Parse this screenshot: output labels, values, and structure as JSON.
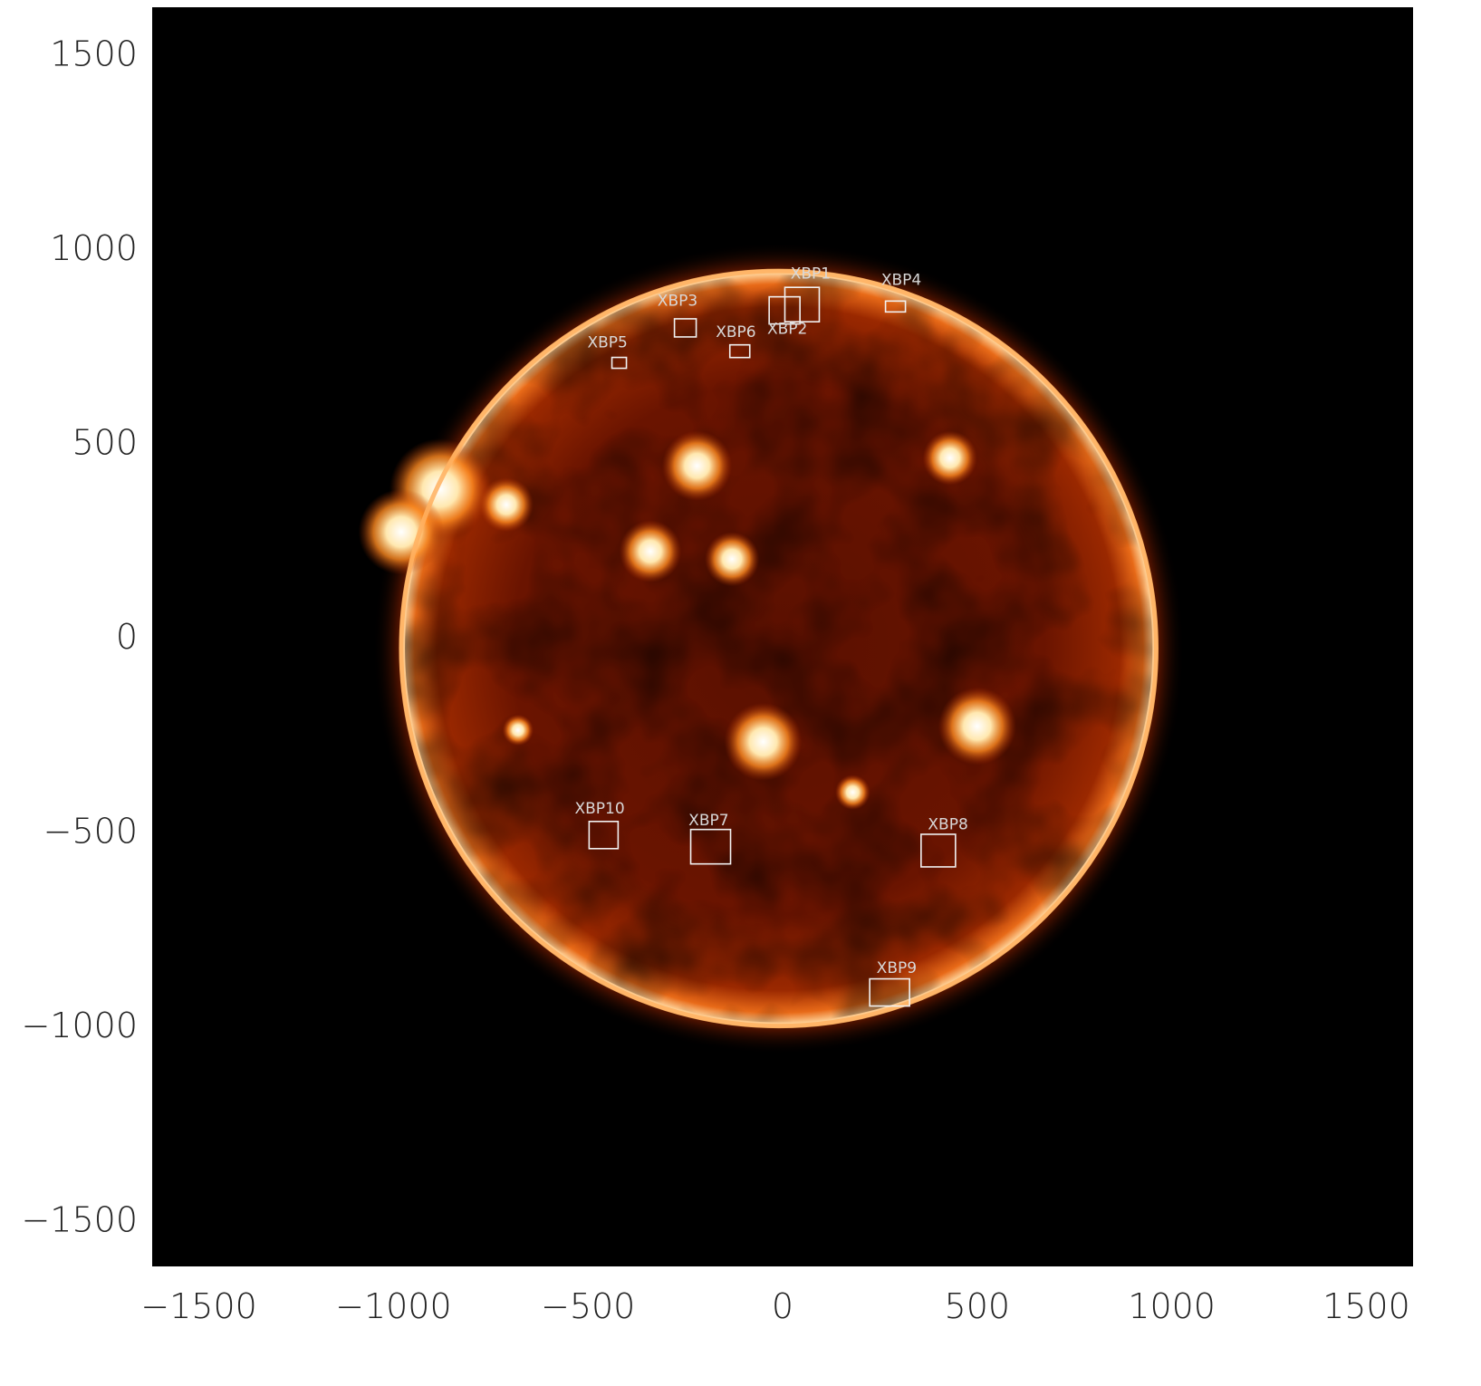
{
  "colors": {
    "background": "#000000",
    "disk_dark": "#3a0800",
    "disk_mid": "#8a1e00",
    "limb": "#ffb060",
    "active_region": "#fff2d0",
    "annotation": "#f2f2f2"
  },
  "axes": {
    "x_range": [
      -1620,
      1620
    ],
    "y_range": [
      -1620,
      1620
    ],
    "x_ticks": [
      {
        "value": -1500,
        "label": "−1500"
      },
      {
        "value": -1000,
        "label": "−1000"
      },
      {
        "value": -500,
        "label": "−500"
      },
      {
        "value": 0,
        "label": "0"
      },
      {
        "value": 500,
        "label": "500"
      },
      {
        "value": 1000,
        "label": "1000"
      },
      {
        "value": 1500,
        "label": "1500"
      }
    ],
    "y_ticks": [
      {
        "value": 1500,
        "label": "1500"
      },
      {
        "value": 1000,
        "label": "1000"
      },
      {
        "value": 500,
        "label": "500"
      },
      {
        "value": 0,
        "label": "0"
      },
      {
        "value": -500,
        "label": "−500"
      },
      {
        "value": -1000,
        "label": "−1000"
      },
      {
        "value": -1500,
        "label": "−1500"
      }
    ]
  },
  "sun": {
    "center": [
      -10,
      -30
    ],
    "radius": 975
  },
  "active_regions": [
    {
      "x": -880,
      "y": 380,
      "r": 130
    },
    {
      "x": -980,
      "y": 270,
      "r": 110
    },
    {
      "x": -710,
      "y": 340,
      "r": 70
    },
    {
      "x": -220,
      "y": 440,
      "r": 90
    },
    {
      "x": -340,
      "y": 220,
      "r": 80
    },
    {
      "x": -130,
      "y": 200,
      "r": 70
    },
    {
      "x": 430,
      "y": 460,
      "r": 70
    },
    {
      "x": 500,
      "y": -230,
      "r": 100
    },
    {
      "x": -50,
      "y": -270,
      "r": 100
    },
    {
      "x": -680,
      "y": -240,
      "r": 40
    },
    {
      "x": 180,
      "y": -400,
      "r": 45
    }
  ],
  "xbp_markers": [
    {
      "id": "XBP1",
      "label": "XBP1",
      "x": 50,
      "y": 855,
      "w": 38,
      "h": 38,
      "lx": 72,
      "ly": 922
    },
    {
      "id": "XBP2",
      "label": "XBP2",
      "x": 5,
      "y": 840,
      "w": 34,
      "h": 30,
      "lx": 12,
      "ly": 780
    },
    {
      "id": "XBP3",
      "label": "XBP3",
      "x": -250,
      "y": 795,
      "w": 24,
      "h": 20,
      "lx": -270,
      "ly": 852
    },
    {
      "id": "XBP4",
      "label": "XBP4",
      "x": 290,
      "y": 850,
      "w": 22,
      "h": 12,
      "lx": 305,
      "ly": 905
    },
    {
      "id": "XBP5",
      "label": "XBP5",
      "x": -420,
      "y": 705,
      "w": 16,
      "h": 12,
      "lx": -450,
      "ly": 745
    },
    {
      "id": "XBP6",
      "label": "XBP6",
      "x": -110,
      "y": 735,
      "w": 22,
      "h": 14,
      "lx": -120,
      "ly": 772
    },
    {
      "id": "XBP7",
      "label": "XBP7",
      "x": -185,
      "y": -540,
      "w": 44,
      "h": 38,
      "lx": -190,
      "ly": -485
    },
    {
      "id": "XBP8",
      "label": "XBP8",
      "x": 400,
      "y": -550,
      "w": 38,
      "h": 36,
      "lx": 425,
      "ly": -495
    },
    {
      "id": "XBP9",
      "label": "XBP9",
      "x": 275,
      "y": -915,
      "w": 44,
      "h": 30,
      "lx": 293,
      "ly": -865
    },
    {
      "id": "XBP10",
      "label": "XBP10",
      "x": -460,
      "y": -510,
      "w": 32,
      "h": 30,
      "lx": -470,
      "ly": -455
    }
  ]
}
